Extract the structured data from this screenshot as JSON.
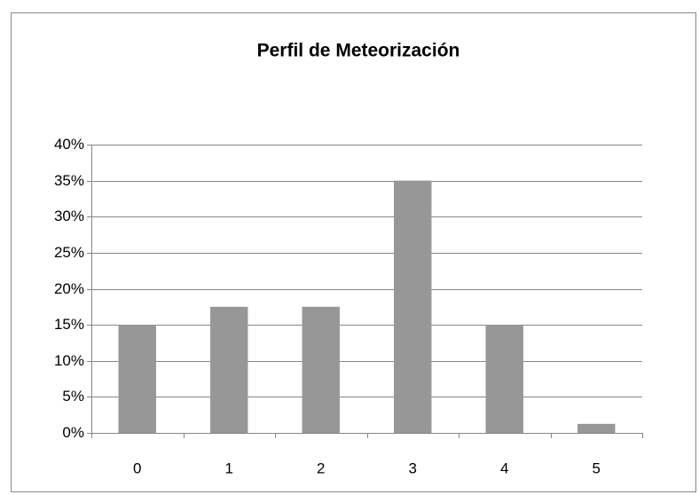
{
  "chart_data": {
    "type": "bar",
    "title": "Perfil de Meteorización",
    "categories": [
      "0",
      "1",
      "2",
      "3",
      "4",
      "5"
    ],
    "values": [
      15,
      17.5,
      17.5,
      35,
      15,
      1.25
    ],
    "color": "#979797",
    "ylim": [
      0,
      40
    ],
    "yticks": [
      {
        "value": 0,
        "label": "0%"
      },
      {
        "value": 5,
        "label": "5%"
      },
      {
        "value": 10,
        "label": "10%"
      },
      {
        "value": 15,
        "label": "15%"
      },
      {
        "value": 20,
        "label": "20%"
      },
      {
        "value": 25,
        "label": "25%"
      },
      {
        "value": 30,
        "label": "30%"
      },
      {
        "value": 35,
        "label": "35%"
      },
      {
        "value": 40,
        "label": "40%"
      }
    ],
    "grid": true
  }
}
